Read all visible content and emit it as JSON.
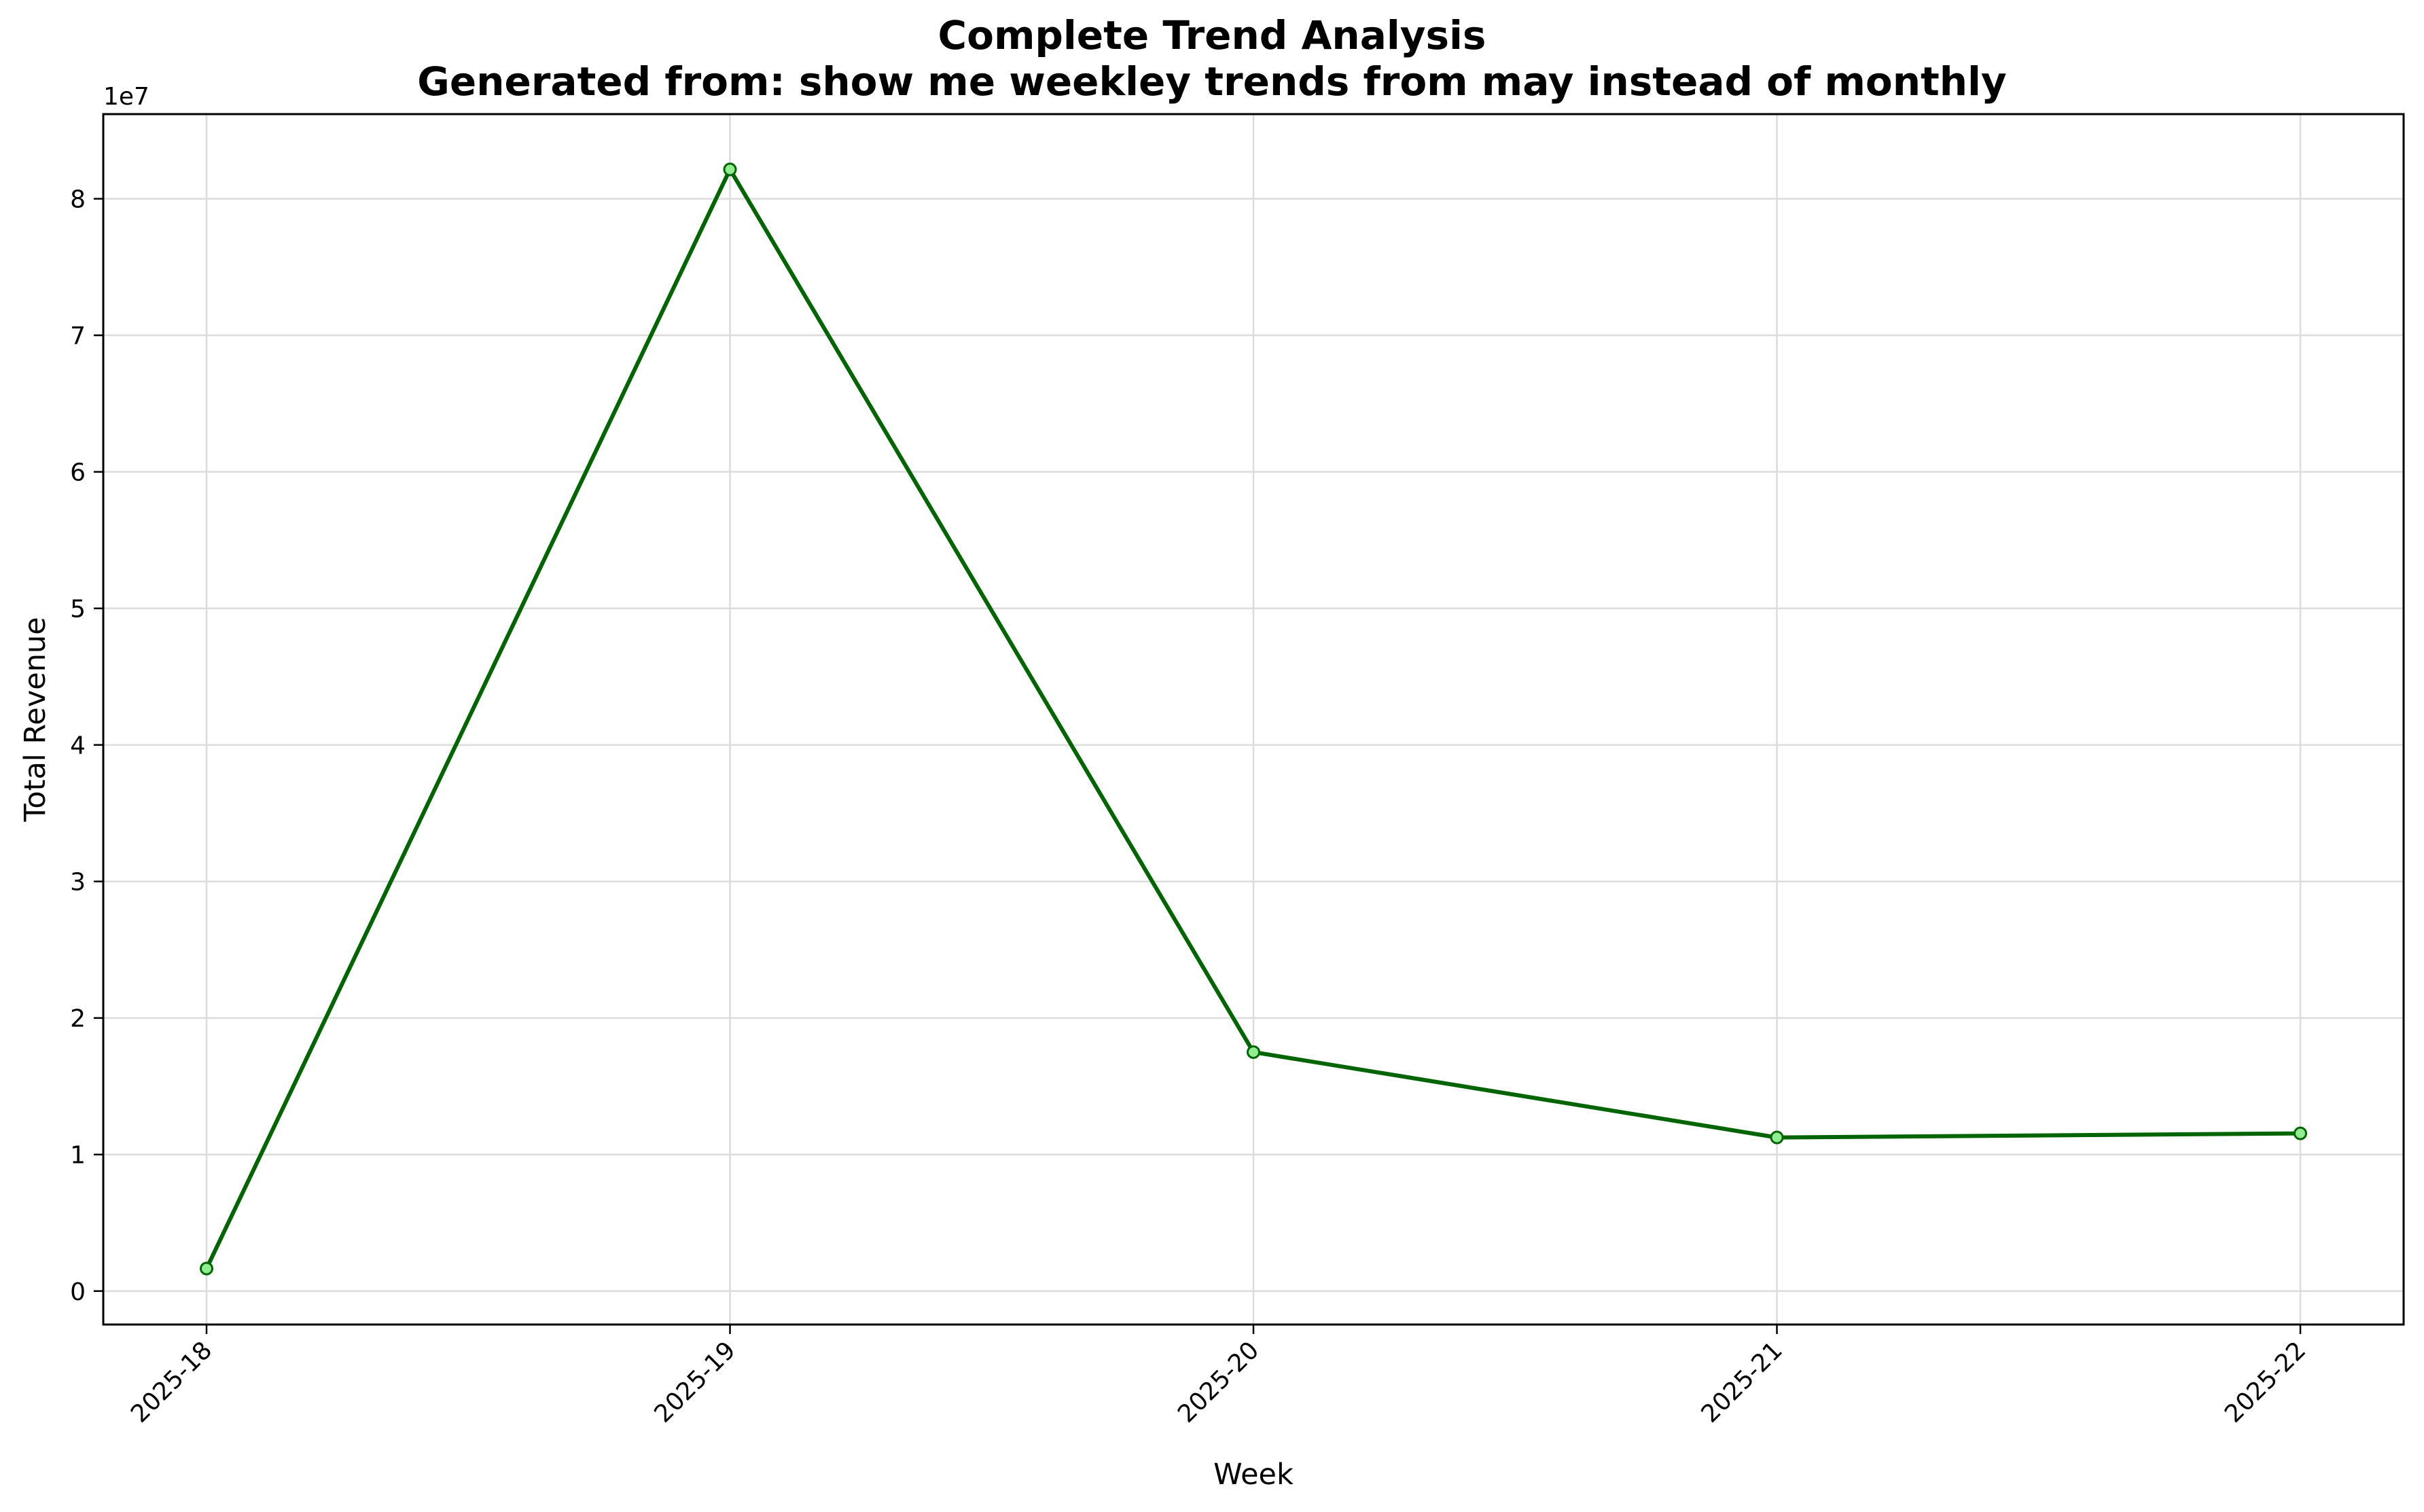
{
  "chart_data": {
    "type": "line",
    "title": "Complete Trend Analysis",
    "subtitle": "Generated from: show me weekley trends from may instead of monthly",
    "xlabel": "Week",
    "ylabel": "Total Revenue",
    "y_offset_label": "1e7",
    "y_multiplier": 10000000,
    "categories": [
      "2025-18",
      "2025-19",
      "2025-20",
      "2025-21",
      "2025-22"
    ],
    "series": [
      {
        "values": [
          1650000,
          82150000,
          17500000,
          11250000,
          11550000
        ],
        "color": "#006400",
        "marker_fill": "#90ee90"
      }
    ],
    "yticks": [
      0,
      10000000,
      20000000,
      30000000,
      40000000,
      50000000,
      60000000,
      70000000,
      80000000
    ],
    "ytick_labels": [
      "0",
      "1",
      "2",
      "3",
      "4",
      "5",
      "6",
      "7",
      "8"
    ],
    "ylim": [
      -2450000,
      86200000
    ],
    "grid": true,
    "legend": "none"
  }
}
